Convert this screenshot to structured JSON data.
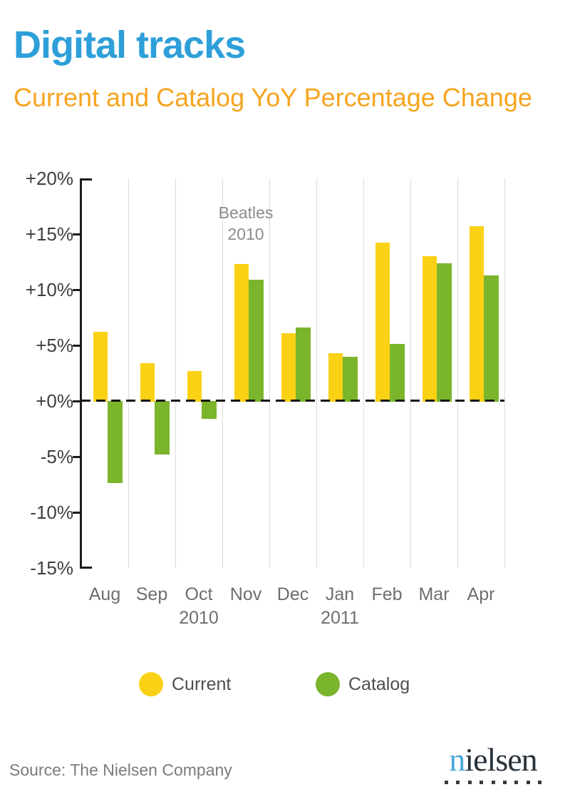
{
  "header": {
    "title": "Digital tracks",
    "subtitle": "Current and Catalog YoY Percentage Change",
    "title_color": "#2E9FD9",
    "subtitle_color": "#F6A41F"
  },
  "chart_data": {
    "type": "bar",
    "categories": [
      "Aug",
      "Sep",
      "Oct",
      "Nov",
      "Dec",
      "Jan",
      "Feb",
      "Mar",
      "Apr"
    ],
    "year_labels": [
      {
        "index": 2,
        "label": "2010"
      },
      {
        "index": 5,
        "label": "2011"
      }
    ],
    "series": [
      {
        "name": "Current",
        "color": "#FBD116",
        "values": [
          6.2,
          3.4,
          2.7,
          12.3,
          6.1,
          4.3,
          14.2,
          13.0,
          15.7
        ]
      },
      {
        "name": "Catalog",
        "color": "#7AB52C",
        "values": [
          -7.4,
          -4.8,
          -1.6,
          10.9,
          6.6,
          4.0,
          5.1,
          12.4,
          11.3
        ]
      }
    ],
    "ylabel": "",
    "xlabel": "",
    "ylim": [
      -15,
      20
    ],
    "y_ticks": [
      {
        "value": 20,
        "label": "+20%"
      },
      {
        "value": 15,
        "label": "+15%"
      },
      {
        "value": 10,
        "label": "+10%"
      },
      {
        "value": 5,
        "label": "+5%"
      },
      {
        "value": 0,
        "label": "+0%"
      },
      {
        "value": -5,
        "label": "-5%"
      },
      {
        "value": -10,
        "label": "-10%"
      },
      {
        "value": -15,
        "label": "-15%"
      }
    ],
    "grid": "vertical-light-gray",
    "zero_line": "black-dashed",
    "legend_position": "bottom",
    "annotation": {
      "line1": "Beatles",
      "line2": "2010",
      "anchor_category": "Nov"
    }
  },
  "legend": {
    "items": [
      {
        "label": "Current",
        "color": "#FBD116"
      },
      {
        "label": "Catalog",
        "color": "#7AB52C"
      }
    ]
  },
  "footer": {
    "source": "Source: The Nielsen Company"
  },
  "logo": {
    "blue_part": "n",
    "dark_part": "ielsen",
    "blue_color": "#4AA8DA",
    "dark_color": "#28323B",
    "dot_count": 9
  }
}
